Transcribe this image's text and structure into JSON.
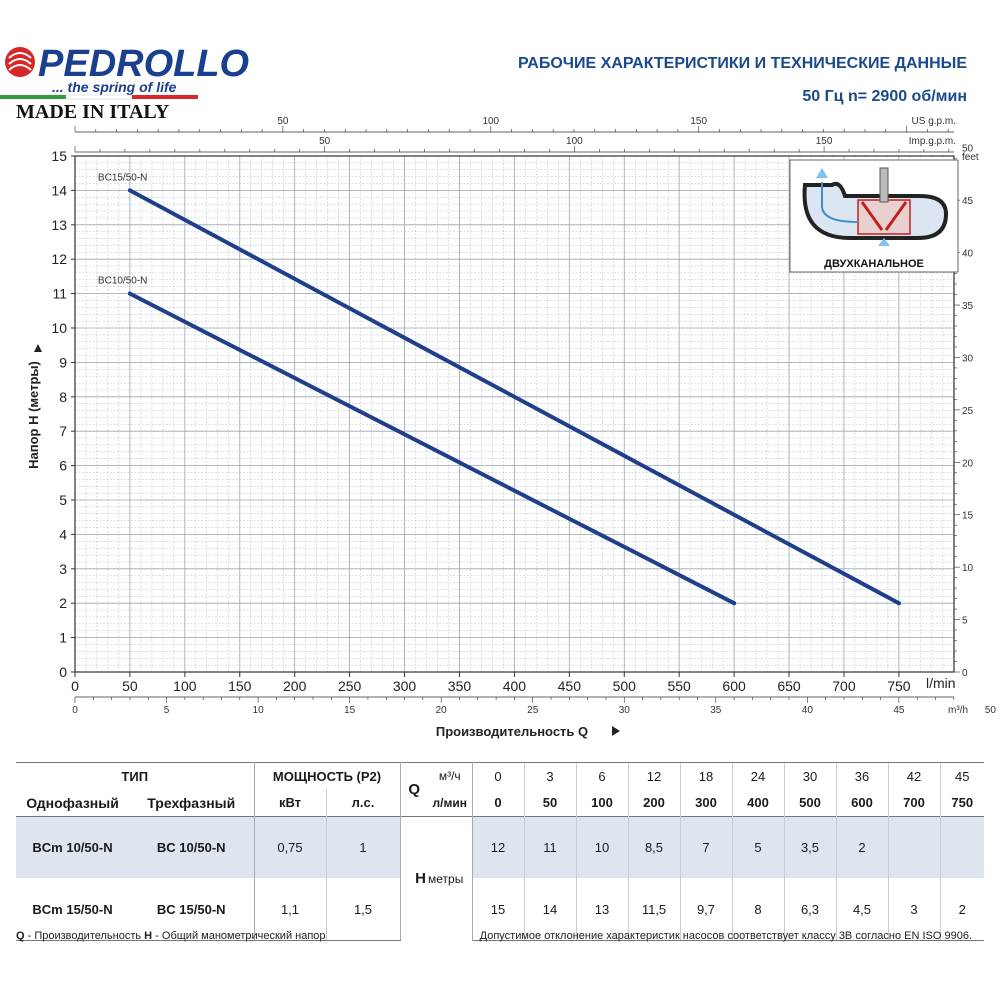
{
  "brand": {
    "name": "PEDROLLO",
    "tagline": "... the spring of life",
    "made_in": "MADE IN ITALY"
  },
  "header": {
    "title": "РАБОЧИЕ ХАРАКТЕРИСТИКИ И ТЕХНИЧЕСКИЕ ДАННЫЕ",
    "subtitle": "50 Гц    n= 2900 об/мин"
  },
  "colors": {
    "curve": "#1f3f8a",
    "accent": "#1a4a8c",
    "grid": "#9aa4b4",
    "table_shade": "#dde6ef"
  },
  "inset": {
    "label": "ДВУХКАНАЛЬНОЕ",
    "icon": "twin-channel-impeller-icon"
  },
  "chart_data": {
    "type": "line",
    "xlabel": "Производительность Q",
    "ylabel": "Напор H (метры)",
    "x_unit": "l/min",
    "xlim": [
      0,
      800
    ],
    "ylim": [
      0,
      15
    ],
    "x_ticks": [
      0,
      50,
      100,
      150,
      200,
      250,
      300,
      350,
      400,
      450,
      500,
      550,
      600,
      650,
      700,
      750
    ],
    "y_ticks": [
      0,
      1,
      2,
      3,
      4,
      5,
      6,
      7,
      8,
      9,
      10,
      11,
      12,
      13,
      14,
      15
    ],
    "grid": true,
    "secondary_axes": {
      "us_gpm": {
        "unit": "US g.p.m.",
        "ticks": [
          50,
          100,
          150
        ]
      },
      "imp_gpm": {
        "unit": "Imp.g.p.m.",
        "ticks": [
          50,
          100,
          150
        ]
      },
      "m3h": {
        "unit": "m³/h",
        "ticks": [
          0,
          5,
          10,
          15,
          20,
          25,
          30,
          35,
          40,
          45,
          50
        ]
      },
      "feet": {
        "unit": "feet",
        "ticks": [
          0,
          5,
          10,
          15,
          20,
          25,
          30,
          35,
          40,
          45,
          50
        ]
      }
    },
    "series": [
      {
        "name": "BC15/50-N",
        "x": [
          50,
          750
        ],
        "y": [
          14,
          2
        ]
      },
      {
        "name": "BC10/50-N",
        "x": [
          50,
          600
        ],
        "y": [
          11,
          2
        ]
      }
    ]
  },
  "table": {
    "head": {
      "type": "ТИП",
      "power": "МОЩНОСТЬ (P2)",
      "q": "Q",
      "single": "Однофазный",
      "three": "Трехфазный",
      "kw": "кВт",
      "hp": "л.с.",
      "unit_m3h": "м³/ч",
      "unit_lmin": "л/мин",
      "h": "H",
      "h_unit": "метры"
    },
    "q_m3h": [
      "0",
      "3",
      "6",
      "12",
      "18",
      "24",
      "30",
      "36",
      "42",
      "45"
    ],
    "q_lmin": [
      "0",
      "50",
      "100",
      "200",
      "300",
      "400",
      "500",
      "600",
      "700",
      "750"
    ],
    "rows": [
      {
        "single": "BCm 10/50-N",
        "three": "BC 10/50-N",
        "kw": "0,75",
        "hp": "1",
        "h": [
          "12",
          "11",
          "10",
          "8,5",
          "7",
          "5",
          "3,5",
          "2",
          "",
          ""
        ]
      },
      {
        "single": "BCm 15/50-N",
        "three": "BC 15/50-N",
        "kw": "1,1",
        "hp": "1,5",
        "h": [
          "15",
          "14",
          "13",
          "11,5",
          "9,7",
          "8",
          "6,3",
          "4,5",
          "3",
          "2"
        ]
      }
    ]
  },
  "footer": {
    "legend_q": "Q",
    "legend_q_text": " - Производительность   ",
    "legend_h": "H",
    "legend_h_text": " - Общий манометрический напор",
    "tolerance": "Допустимое отклонение характеристик насосов соответствует классу 3В согласно EN ISO 9906."
  }
}
